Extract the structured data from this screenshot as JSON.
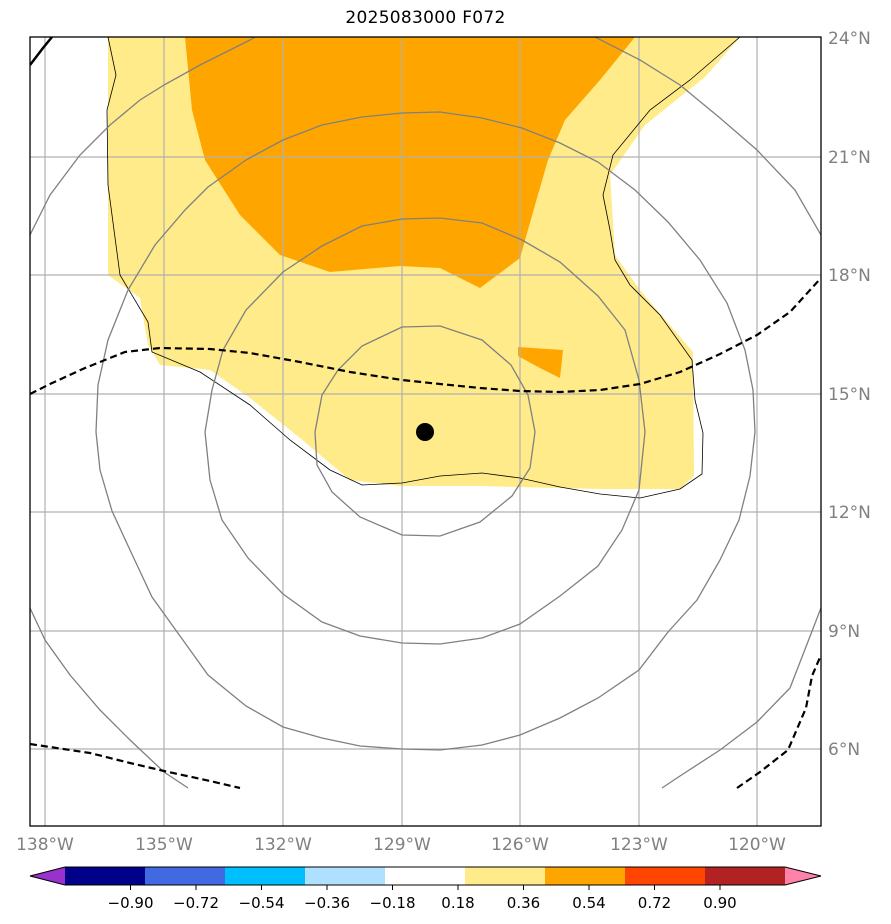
{
  "title": "2025083000 F072",
  "map": {
    "lon_labels": [
      "138°W",
      "135°W",
      "132°W",
      "129°W",
      "126°W",
      "123°W",
      "120°W"
    ],
    "lat_labels": [
      "6°N",
      "9°N",
      "12°N",
      "15°N",
      "18°N",
      "21°N",
      "24°N"
    ],
    "storm_center": "storm-center-dot"
  },
  "colorbar": {
    "labels": [
      "−0.90",
      "−0.72",
      "−0.54",
      "−0.36",
      "−0.18",
      "0.18",
      "0.36",
      "0.54",
      "0.72",
      "0.90"
    ],
    "colors": [
      "#9932cc",
      "#00008b",
      "#4169e1",
      "#00bfff",
      "#b0e0ff",
      "#ffffff",
      "#ffeb8a",
      "#ffa500",
      "#ff4500",
      "#b22222",
      "#ff82ab"
    ]
  },
  "colors": {
    "fill_light": "#ffeb8a",
    "fill_orange": "#ffa500",
    "contour": "#808080",
    "gridline": "#b0b0b0"
  }
}
